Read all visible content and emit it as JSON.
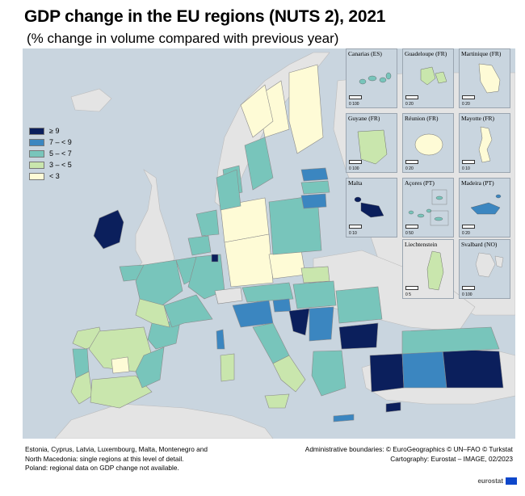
{
  "title": "GDP change in the EU regions (NUTS 2), 2021",
  "subtitle": "(% change in volume compared with previous year)",
  "legend": [
    {
      "label": "≥ 9",
      "color": "#0b1f5c"
    },
    {
      "label": "7 – < 9",
      "color": "#3b86c0"
    },
    {
      "label": "5 – < 7",
      "color": "#78c5bb"
    },
    {
      "label": "3 – < 5",
      "color": "#c9e6ad"
    },
    {
      "label": "< 3",
      "color": "#fefbd6"
    }
  ],
  "colors": {
    "sea": "#c9d5df",
    "non_eu": "#e4e4e4",
    "border": "#9a9a9a"
  },
  "insets": [
    {
      "label": "Canarias (ES)",
      "scale": "0   100"
    },
    {
      "label": "Guadeloupe (FR)",
      "scale": "0   20"
    },
    {
      "label": "Martinique (FR)",
      "scale": "0   20"
    },
    {
      "label": "Guyane (FR)",
      "scale": "0   100"
    },
    {
      "label": "Réunion (FR)",
      "scale": "0   20"
    },
    {
      "label": "Mayotte (FR)",
      "scale": "0   10"
    },
    {
      "label": "Malta",
      "scale": "0   10"
    },
    {
      "label": "Açores (PT)",
      "scale": "0   50"
    },
    {
      "label": "Madeira (PT)",
      "scale": "0   20"
    },
    {
      "label": "Liechtenstein",
      "scale": "0   5"
    },
    {
      "label": "Svalbard (NO)",
      "scale": "0   100"
    }
  ],
  "footnote": [
    "Estonia, Cyprus, Latvia, Luxembourg, Malta, Montenegro and",
    "North Macedonia: single regions at this level of detail.",
    "Poland: regional data on GDP change not available."
  ],
  "credits": [
    "Administrative boundaries: © EuroGeographics © UN–FAO © Turkstat",
    "Cartography: Eurostat – IMAGE, 02/2023"
  ],
  "logo_text": "eurostat"
}
